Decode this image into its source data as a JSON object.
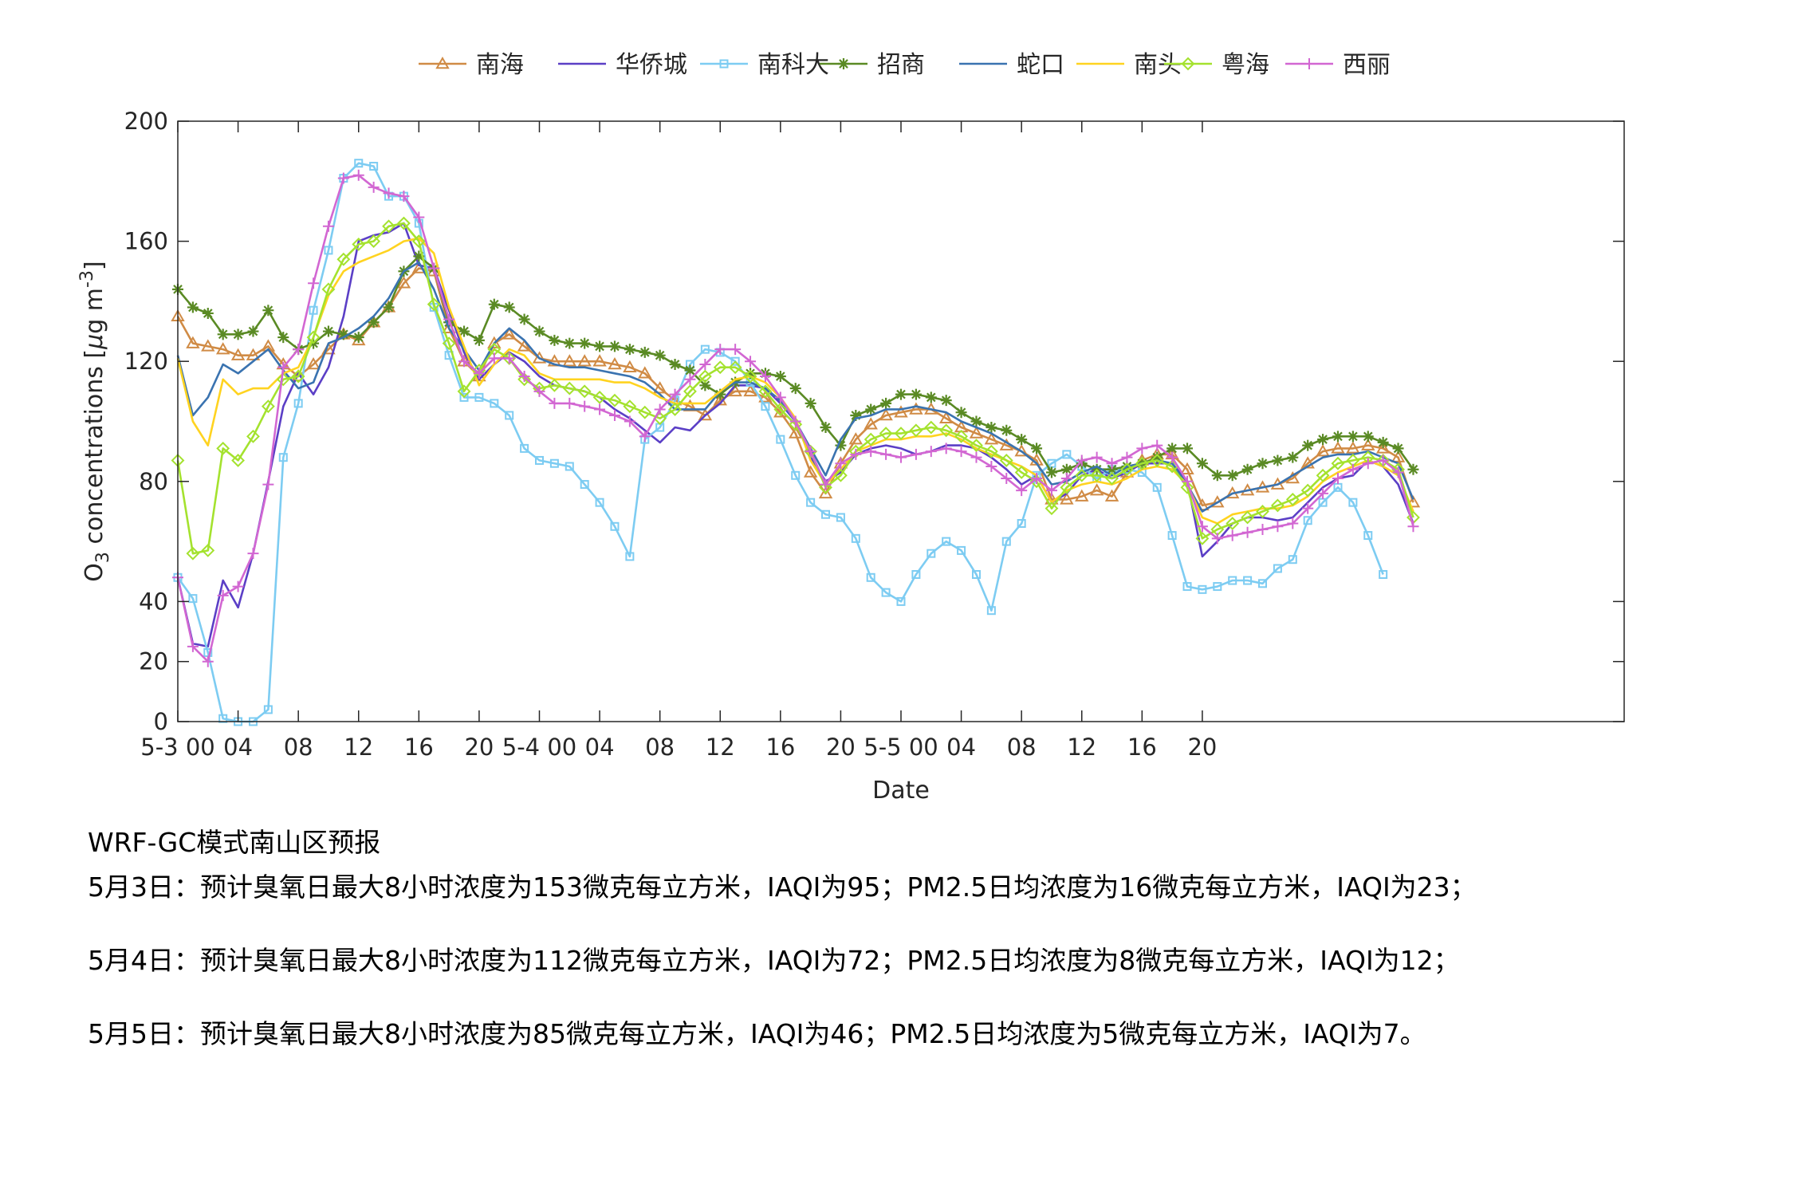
{
  "chart_data": {
    "type": "line",
    "title": "",
    "xlabel": "Date",
    "ylabel": "O3 concentrations [μg m-3]",
    "ylabel_parts": {
      "main": "O",
      "sub": "3",
      "rest": " concentrations [",
      "mu": "μ",
      "unit": "g m",
      "sup": "-3",
      "close": "]"
    },
    "ylim": [
      0,
      200
    ],
    "yticks": [
      0,
      20,
      40,
      80,
      120,
      160,
      200
    ],
    "x_index_range": [
      0,
      96
    ],
    "xticks": [
      {
        "i": 0,
        "label": "5-3 00"
      },
      {
        "i": 4,
        "label": "04"
      },
      {
        "i": 8,
        "label": "08"
      },
      {
        "i": 12,
        "label": "12"
      },
      {
        "i": 16,
        "label": "16"
      },
      {
        "i": 20,
        "label": "20"
      },
      {
        "i": 24,
        "label": "5-4 00"
      },
      {
        "i": 28,
        "label": "04"
      },
      {
        "i": 32,
        "label": "08"
      },
      {
        "i": 36,
        "label": "12"
      },
      {
        "i": 40,
        "label": "16"
      },
      {
        "i": 44,
        "label": "20"
      },
      {
        "i": 48,
        "label": "5-5 00"
      },
      {
        "i": 52,
        "label": "04"
      },
      {
        "i": 56,
        "label": "08"
      },
      {
        "i": 60,
        "label": "12"
      },
      {
        "i": 64,
        "label": "16"
      },
      {
        "i": 68,
        "label": "20"
      }
    ],
    "grid": false,
    "legend_position": "top-center",
    "series": [
      {
        "name": "南海",
        "color": "#d08b45",
        "marker": "triangle",
        "values": [
          135,
          126,
          125,
          124,
          122,
          122,
          125,
          119,
          115,
          119,
          124,
          129,
          127,
          133,
          138,
          146,
          151,
          150,
          131,
          120,
          115,
          126,
          129,
          125,
          121,
          120,
          120,
          120,
          120,
          119,
          118,
          116,
          111,
          107,
          105,
          102,
          107,
          110,
          110,
          108,
          103,
          96,
          83,
          76,
          86,
          94,
          99,
          102,
          103,
          104,
          104,
          101,
          98,
          96,
          94,
          92,
          90,
          87,
          74,
          74,
          75,
          77,
          75,
          83,
          87,
          89,
          89,
          84,
          72,
          73,
          76,
          77,
          78,
          79,
          81,
          86,
          90,
          91,
          91,
          92,
          91,
          88,
          73
        ]
      },
      {
        "name": "华侨城",
        "color": "#5b3fc6",
        "marker": "none",
        "values": [
          48,
          26,
          25,
          47,
          38,
          56,
          80,
          105,
          116,
          109,
          118,
          135,
          160,
          162,
          163,
          166,
          152,
          151,
          137,
          123,
          114,
          119,
          123,
          120,
          115,
          112,
          111,
          110,
          108,
          104,
          101,
          97,
          93,
          98,
          97,
          102,
          106,
          112,
          112,
          111,
          106,
          100,
          88,
          80,
          83,
          89,
          91,
          92,
          91,
          89,
          90,
          92,
          92,
          91,
          88,
          84,
          79,
          82,
          73,
          76,
          82,
          84,
          81,
          83,
          86,
          86,
          86,
          80,
          55,
          60,
          66,
          68,
          68,
          67,
          68,
          73,
          78,
          81,
          82,
          87,
          85,
          79,
          66
        ]
      },
      {
        "name": "南科大",
        "color": "#7dccf2",
        "marker": "square",
        "values": [
          48,
          41,
          23,
          1,
          0,
          0,
          4,
          88,
          106,
          137,
          157,
          181,
          186,
          185,
          175,
          175,
          166,
          138,
          122,
          108,
          108,
          106,
          102,
          91,
          87,
          86,
          85,
          79,
          73,
          65,
          55,
          94,
          98,
          107,
          119,
          124,
          123,
          120,
          113,
          105,
          94,
          82,
          73,
          69,
          68,
          61,
          48,
          43,
          40,
          49,
          56,
          60,
          57,
          49,
          37,
          60,
          66,
          82,
          86,
          89,
          85,
          81,
          84,
          84,
          83,
          78,
          62,
          45,
          44,
          45,
          47,
          47,
          46,
          51,
          54,
          67,
          73,
          78,
          73,
          62,
          49
        ]
      },
      {
        "name": "招商",
        "color": "#5a8a24",
        "marker": "star",
        "values": [
          144,
          138,
          136,
          129,
          129,
          130,
          137,
          128,
          124,
          126,
          130,
          129,
          128,
          133,
          138,
          150,
          155,
          151,
          133,
          130,
          127,
          139,
          138,
          134,
          130,
          127,
          126,
          126,
          125,
          125,
          124,
          123,
          122,
          119,
          117,
          112,
          109,
          113,
          116,
          116,
          115,
          111,
          106,
          98,
          92,
          102,
          104,
          106,
          109,
          109,
          108,
          107,
          103,
          100,
          98,
          97,
          94,
          91,
          83,
          84,
          86,
          84,
          84,
          85,
          86,
          88,
          91,
          91,
          86,
          82,
          82,
          84,
          86,
          87,
          88,
          92,
          94,
          95,
          95,
          95,
          93,
          91,
          84
        ]
      },
      {
        "name": "蛇口",
        "color": "#3a73b0",
        "marker": "none",
        "values": [
          122,
          102,
          108,
          119,
          116,
          120,
          124,
          117,
          111,
          113,
          126,
          128,
          131,
          135,
          141,
          150,
          153,
          144,
          131,
          124,
          117,
          126,
          131,
          127,
          121,
          119,
          118,
          118,
          117,
          116,
          115,
          113,
          109,
          104,
          104,
          104,
          110,
          113,
          113,
          111,
          107,
          100,
          91,
          82,
          94,
          101,
          102,
          104,
          104,
          105,
          104,
          103,
          100,
          98,
          96,
          93,
          90,
          86,
          79,
          80,
          83,
          85,
          82,
          85,
          86,
          87,
          86,
          79,
          70,
          73,
          76,
          77,
          78,
          79,
          82,
          85,
          88,
          89,
          89,
          90,
          88,
          86,
          74
        ]
      },
      {
        "name": "南头",
        "color": "#ffd320",
        "marker": "none",
        "values": [
          121,
          100,
          92,
          114,
          109,
          111,
          111,
          116,
          118,
          128,
          142,
          150,
          153,
          155,
          157,
          160,
          161,
          156,
          138,
          125,
          112,
          119,
          124,
          122,
          116,
          114,
          114,
          114,
          114,
          113,
          113,
          111,
          108,
          106,
          106,
          106,
          110,
          114,
          115,
          113,
          108,
          101,
          87,
          79,
          84,
          90,
          92,
          94,
          94,
          95,
          95,
          96,
          94,
          91,
          89,
          87,
          85,
          82,
          73,
          77,
          79,
          80,
          79,
          81,
          84,
          85,
          84,
          79,
          68,
          66,
          69,
          70,
          71,
          71,
          72,
          75,
          80,
          83,
          85,
          87,
          85,
          82,
          70
        ]
      },
      {
        "name": "粤海",
        "color": "#a4e22e",
        "marker": "diamond",
        "values": [
          87,
          56,
          57,
          91,
          87,
          95,
          105,
          114,
          115,
          128,
          144,
          154,
          159,
          160,
          165,
          166,
          160,
          139,
          126,
          110,
          117,
          124,
          121,
          114,
          111,
          112,
          111,
          110,
          108,
          107,
          105,
          103,
          101,
          104,
          110,
          115,
          118,
          118,
          115,
          110,
          104,
          99,
          90,
          78,
          82,
          90,
          94,
          96,
          96,
          97,
          98,
          97,
          95,
          92,
          90,
          87,
          83,
          80,
          71,
          78,
          82,
          82,
          81,
          84,
          86,
          87,
          85,
          78,
          61,
          64,
          66,
          68,
          70,
          72,
          74,
          77,
          82,
          86,
          87,
          88,
          87,
          84,
          68
        ]
      },
      {
        "name": "西丽",
        "color": "#d267d2",
        "marker": "plus",
        "values": [
          48,
          25,
          20,
          42,
          45,
          56,
          79,
          118,
          124,
          146,
          165,
          181,
          182,
          178,
          176,
          175,
          168,
          151,
          134,
          120,
          116,
          121,
          121,
          115,
          110,
          106,
          106,
          105,
          104,
          102,
          100,
          95,
          104,
          109,
          114,
          119,
          124,
          124,
          120,
          115,
          108,
          100,
          90,
          79,
          86,
          89,
          90,
          89,
          88,
          89,
          90,
          91,
          90,
          88,
          85,
          81,
          77,
          81,
          77,
          81,
          87,
          88,
          86,
          88,
          91,
          92,
          88,
          80,
          65,
          61,
          62,
          63,
          64,
          65,
          66,
          71,
          76,
          81,
          84,
          86,
          87,
          83,
          65
        ]
      }
    ]
  },
  "forecast": {
    "title": "WRF-GC模式南山区预报",
    "lines": [
      "5月3日：预计臭氧日最大8小时浓度为153微克每立方米，IAQI为95；PM2.5日均浓度为16微克每立方米，IAQI为23；",
      "5月4日：预计臭氧日最大8小时浓度为112微克每立方米，IAQI为72；PM2.5日均浓度为8微克每立方米，IAQI为12；",
      "5月5日：预计臭氧日最大8小时浓度为85微克每立方米，IAQI为46；PM2.5日均浓度为5微克每立方米，IAQI为7。"
    ]
  }
}
